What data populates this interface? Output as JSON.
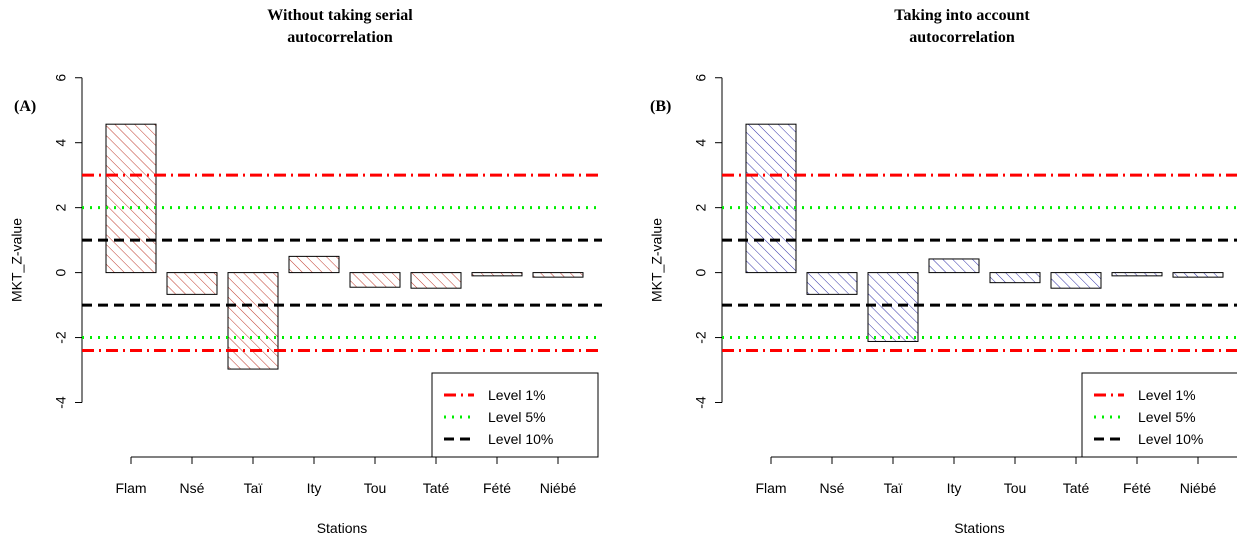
{
  "chart_data": [
    {
      "type": "bar",
      "panel": "(A)",
      "title_lines": [
        "Without taking serial",
        "autocorrelation"
      ],
      "xlabel": "Stations",
      "ylabel": "MKT_Z-value",
      "ylim": [
        -4.6,
        6.3
      ],
      "yticks": [
        -4,
        -2,
        0,
        2,
        4,
        6
      ],
      "categories": [
        "Flam",
        "Nsé",
        "Taï",
        "Ity",
        "Tou",
        "Taté",
        "Fété",
        "Niébé"
      ],
      "values": [
        4.57,
        -0.67,
        -2.97,
        0.5,
        -0.45,
        -0.48,
        -0.1,
        -0.14
      ],
      "bar_color": "#c0392b",
      "reference_lines": [
        {
          "label": "Level 1%",
          "values": [
            3.0,
            -2.4
          ],
          "color": "#ff0000",
          "style": "dot-dash"
        },
        {
          "label": "Level 5%",
          "values": [
            2.0,
            -2.0
          ],
          "color": "#00ee00",
          "style": "dotted"
        },
        {
          "label": "Level 10%",
          "values": [
            1.0,
            -1.0
          ],
          "color": "#000000",
          "style": "dashed"
        }
      ],
      "legend_position": "bottom-right"
    },
    {
      "type": "bar",
      "panel": "(B)",
      "title_lines": [
        "Taking into account",
        "autocorrelation"
      ],
      "xlabel": "Stations",
      "ylabel": "MKT_Z-value",
      "ylim": [
        -4.6,
        6.3
      ],
      "yticks": [
        -4,
        -2,
        0,
        2,
        4,
        6
      ],
      "categories": [
        "Flam",
        "Nsé",
        "Taï",
        "Ity",
        "Tou",
        "Taté",
        "Fété",
        "Niébé"
      ],
      "values": [
        4.57,
        -0.67,
        -2.12,
        0.42,
        -0.31,
        -0.48,
        -0.1,
        -0.14
      ],
      "bar_color": "#3333aa",
      "reference_lines": [
        {
          "label": "Level 1%",
          "values": [
            3.0,
            -2.4
          ],
          "color": "#ff0000",
          "style": "dot-dash"
        },
        {
          "label": "Level 5%",
          "values": [
            2.0,
            -2.0
          ],
          "color": "#00ee00",
          "style": "dotted"
        },
        {
          "label": "Level 10%",
          "values": [
            1.0,
            -1.0
          ],
          "color": "#000000",
          "style": "dashed"
        }
      ],
      "legend_position": "bottom-right"
    }
  ]
}
